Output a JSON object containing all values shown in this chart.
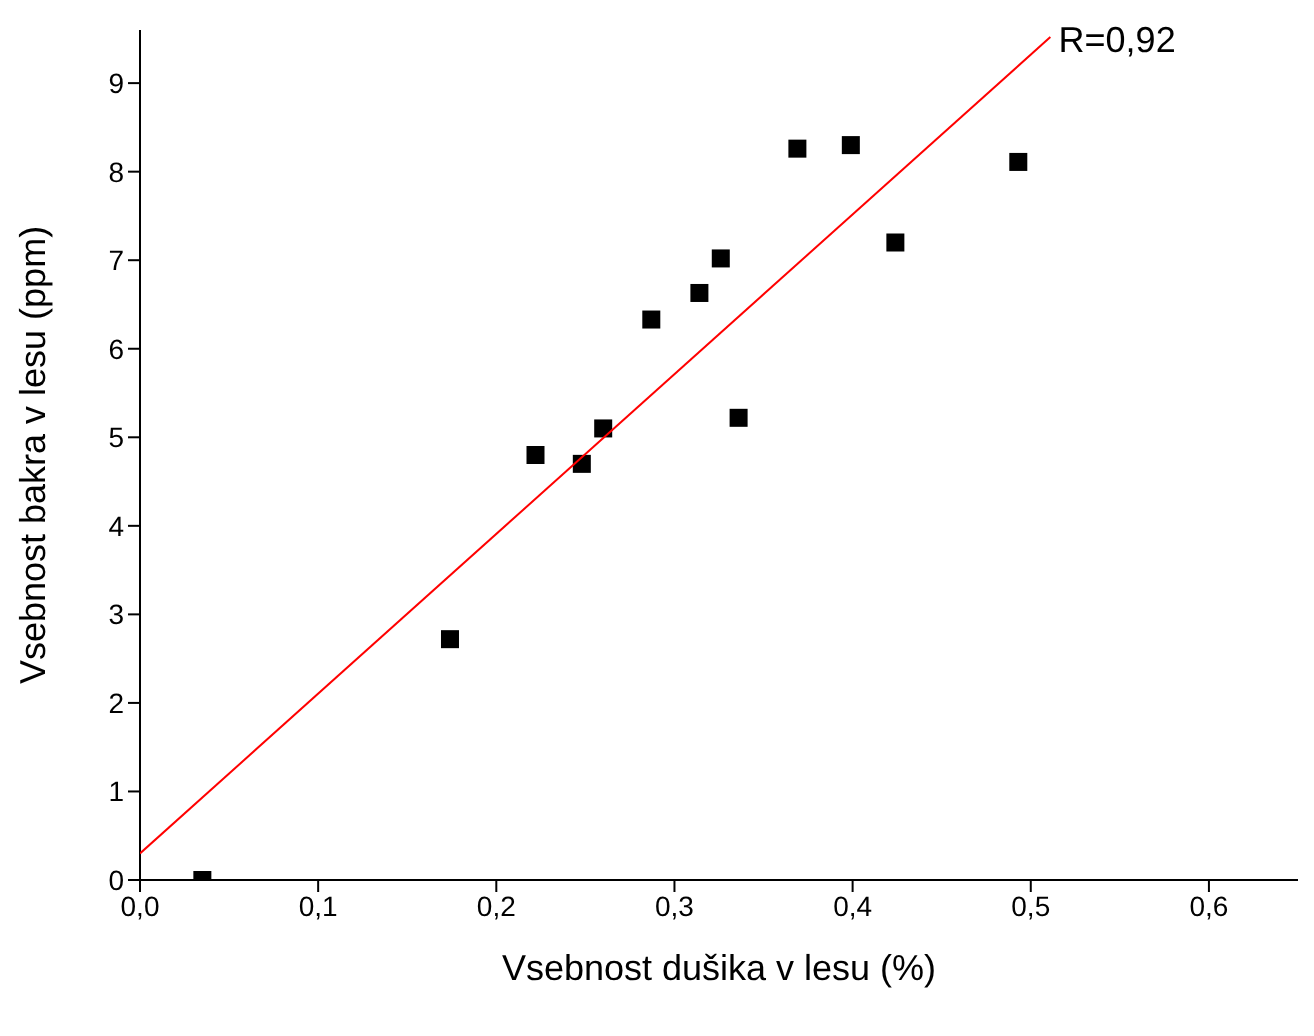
{
  "chart_data": {
    "type": "scatter",
    "xlabel": "Vsebnost dušika v lesu (%)",
    "ylabel": "Vsebnost bakra v lesu (ppm)",
    "xlim": [
      0,
      0.65
    ],
    "xticks": [
      {
        "value": 0,
        "label": "0,0"
      },
      {
        "value": 0.1,
        "label": "0,1"
      },
      {
        "value": 0.2,
        "label": "0,2"
      },
      {
        "value": 0.3,
        "label": "0,3"
      },
      {
        "value": 0.4,
        "label": "0,4"
      },
      {
        "value": 0.5,
        "label": "0,5"
      },
      {
        "value": 0.6,
        "label": "0,6"
      }
    ],
    "ylim": [
      0,
      9.6
    ],
    "yticks": [
      0,
      1,
      2,
      3,
      4,
      5,
      6,
      7,
      8,
      9
    ],
    "grid": false,
    "legend": false,
    "annotations": [
      {
        "text": "R=0,92",
        "x": 0.51,
        "y": 9.5
      }
    ],
    "series": [
      {
        "marker": "square",
        "color": "#000000",
        "x": [
          0.035,
          0.174,
          0.222,
          0.248,
          0.26,
          0.287,
          0.314,
          0.326,
          0.336,
          0.369,
          0.399,
          0.424,
          0.493
        ],
        "values": [
          0.0,
          2.72,
          4.8,
          4.7,
          5.1,
          6.33,
          6.63,
          7.02,
          5.22,
          8.26,
          8.3,
          7.2,
          8.11
        ]
      },
      {
        "type": "line",
        "marker": "none",
        "color": "#ff0000",
        "x": [
          0,
          0.511
        ],
        "values": [
          0.3,
          9.52
        ]
      }
    ]
  }
}
